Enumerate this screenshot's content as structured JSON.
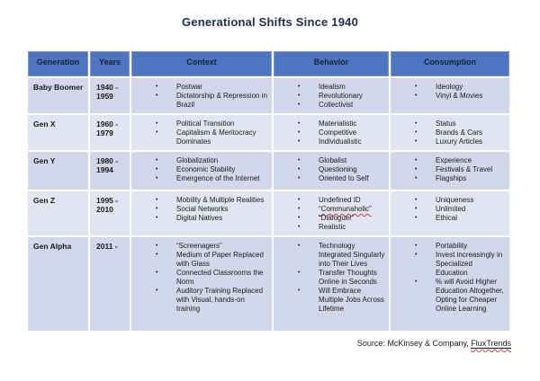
{
  "title": "Generational Shifts Since 1940",
  "source": {
    "prefix": "Source: McKinsey & Company, ",
    "link": "FluxTrends"
  },
  "bullet_glyph": "•",
  "colors": {
    "header_bg": "#4f74c0",
    "header_text": "#16213c",
    "row_dark": "#d2d7e9",
    "row_light": "#e1e4f1",
    "title_text": "#1c2b4e",
    "spellcheck_squiggle": "#d23f31"
  },
  "table": {
    "headers": [
      "Generation",
      "Years",
      "Context",
      "Behavior",
      "Consumption"
    ],
    "rows": [
      {
        "generation": "Baby Boomer",
        "years": "1940 - 1959",
        "context": [
          "Postwar",
          "Dictatorship & Repression in Brazil"
        ],
        "behavior": [
          "Idealism",
          "Revolutionary",
          "Collectivist"
        ],
        "consumption": [
          "Ideology",
          "Vinyl & Movies"
        ]
      },
      {
        "generation": "Gen X",
        "years": "1960 - 1979",
        "context": [
          "Political Transition",
          "Capitalism & Meritocracy Dominates"
        ],
        "behavior": [
          "Materialistic",
          "Competitive",
          "Individualistic"
        ],
        "consumption": [
          "Status",
          "Brands & Cars",
          "Luxury Articles"
        ]
      },
      {
        "generation": "Gen Y",
        "years": "1980 - 1994",
        "context": [
          "Globalization",
          "Economic Stability",
          "Emergence of the Internet"
        ],
        "behavior": [
          "Globalist",
          "Questioning",
          "Oriented to Self"
        ],
        "consumption": [
          "Experience",
          "Festivals & Travel",
          "Flagships"
        ]
      },
      {
        "generation": "Gen Z",
        "years": "1995 - 2010",
        "context": [
          "Mobility & Multiple Realities",
          "Social Networks",
          "Digital Natives"
        ],
        "behavior": [
          "Undefined ID",
          {
            "text": "“Communaholic”",
            "wavy": true
          },
          "“Dialoguer”",
          "Realistic"
        ],
        "consumption": [
          "Uniqueness",
          "Unlimited",
          "Ethical"
        ]
      },
      {
        "generation": "Gen Alpha",
        "years": "2011 -",
        "context": [
          "“Screenagers”",
          "Medium of Paper Replaced with Glass",
          "Connected Classrooms the Norm",
          "Auditory Training Replaced with Visual, hands-on training"
        ],
        "behavior": [
          "Technology Integrated Singularly into Their Lives",
          "Transfer Thoughts Online in Seconds",
          "Will Embrace Multiple Jobs Across Lifetime"
        ],
        "consumption": [
          "Portability",
          "Invest increasingly in Specialized Education",
          "% will Avoid Higher Education Altogether, Opting for Cheaper Online Learning"
        ]
      }
    ]
  }
}
